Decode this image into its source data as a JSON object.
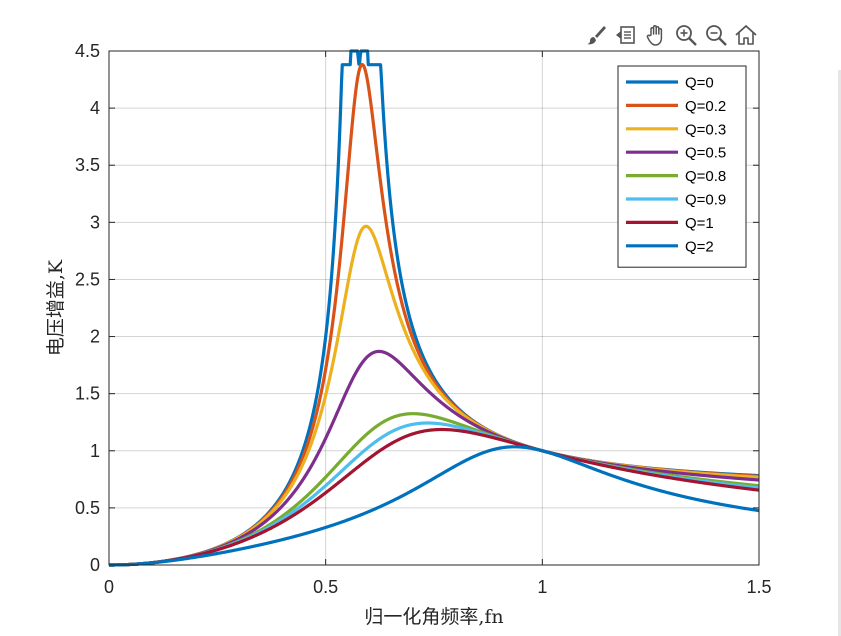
{
  "toolbar": {
    "icons": [
      "brush-icon",
      "datatip-icon",
      "pan-hand-icon",
      "zoom-in-icon",
      "zoom-out-icon",
      "home-icon"
    ]
  },
  "chart_data": {
    "type": "line",
    "title": "",
    "xlabel": "归一化角频率,fn",
    "ylabel": "电压增益,K",
    "xlim": [
      0,
      1.5
    ],
    "ylim": [
      0,
      4.5
    ],
    "xticks": [
      0,
      0.5,
      1,
      1.5
    ],
    "xtick_labels": [
      "0",
      "0.5",
      "1",
      "1.5"
    ],
    "yticks": [
      0,
      0.5,
      1,
      1.5,
      2,
      2.5,
      3,
      3.5,
      4,
      4.5
    ],
    "ytick_labels": [
      "0",
      "0.5",
      "1",
      "1.5",
      "2",
      "2.5",
      "3",
      "3.5",
      "4",
      "4.5"
    ],
    "grid": true,
    "legend_position": "top-right",
    "inductance_ratio_k": 2,
    "series": [
      {
        "name": "Q=0",
        "Q": 0,
        "color": "#0072BD",
        "peak": 4.38
      },
      {
        "name": "Q=0.2",
        "Q": 0.2,
        "color": "#D95319",
        "peak": 2.96
      },
      {
        "name": "Q=0.3",
        "Q": 0.3,
        "color": "#EDB120",
        "peak": 1.87
      },
      {
        "name": "Q=0.5",
        "Q": 0.5,
        "color": "#7E2F8E",
        "peak": 1.33
      },
      {
        "name": "Q=0.8",
        "Q": 0.8,
        "color": "#77AC30",
        "peak": 1.24
      },
      {
        "name": "Q=0.9",
        "Q": 0.9,
        "color": "#4DBEEE",
        "peak": 1.18
      },
      {
        "name": "Q=1",
        "Q": 1,
        "color": "#A2142F",
        "peak": 1.03
      },
      {
        "name": "Q=2",
        "Q": 2,
        "color": "#0072BD",
        "peak": 1.0
      }
    ]
  }
}
